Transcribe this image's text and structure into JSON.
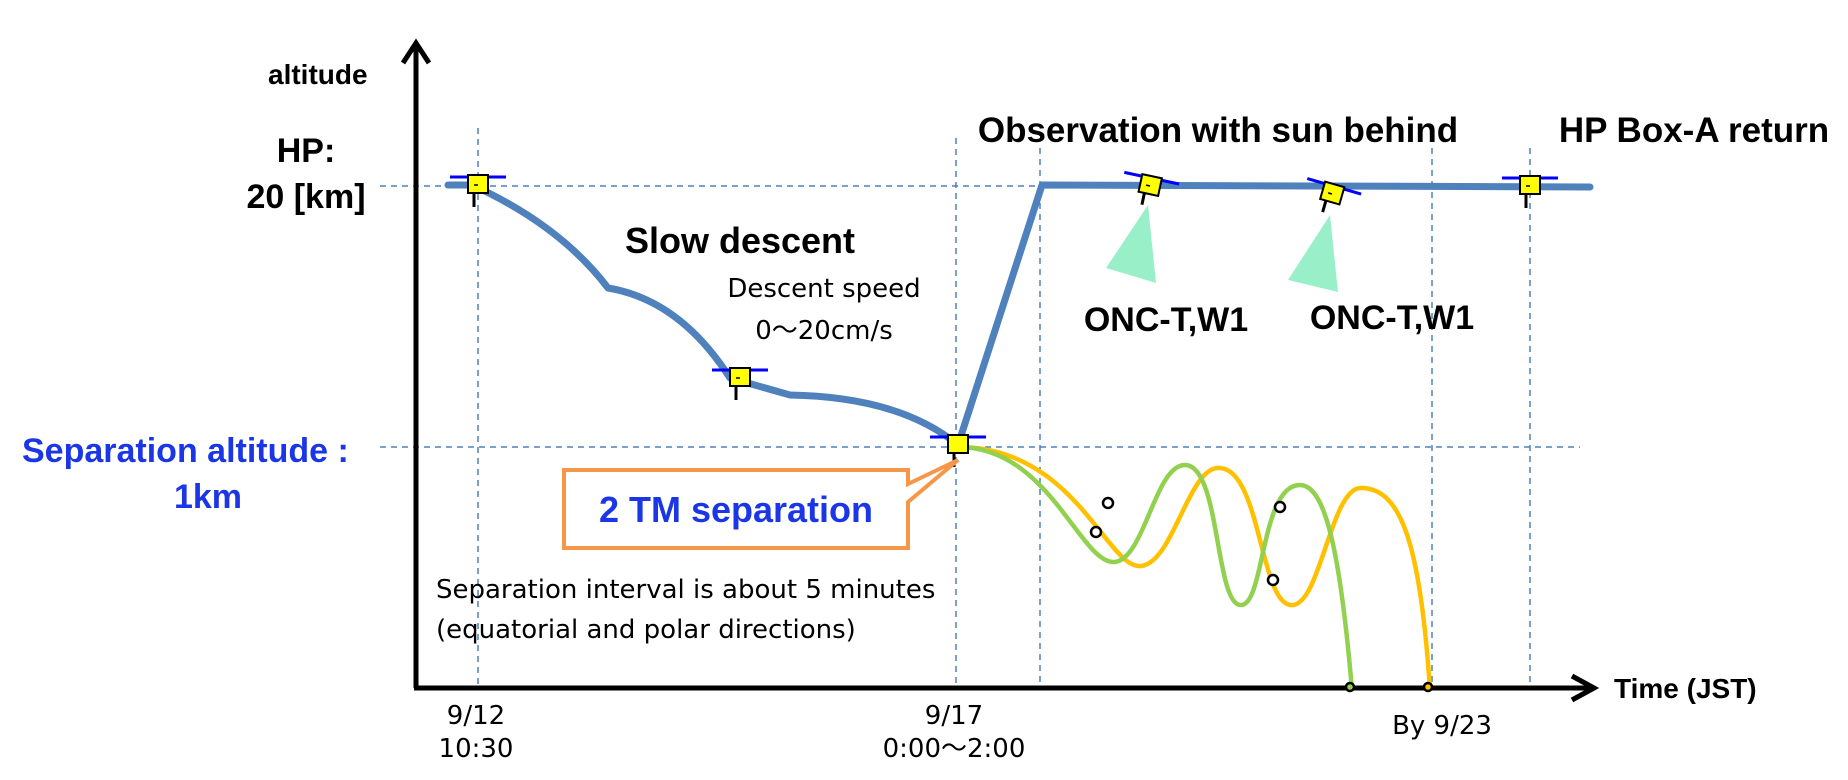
{
  "axes": {
    "y_label": "altitude",
    "x_label": "Time (JST)"
  },
  "levels": {
    "hp_line1": "HP:",
    "hp_line2": "20 [km]",
    "separation_line1": "Separation altitude :",
    "separation_line2": "1km"
  },
  "phases": {
    "slow_descent": "Slow descent",
    "descent_speed_line1": "Descent speed",
    "descent_speed_line2": "0～20cm/s",
    "observation": "Observation with sun behind",
    "box_a_return": "HP Box-A return",
    "onc_1": "ONC-T,W1",
    "onc_2": "ONC-T,W1"
  },
  "separation": {
    "callout": "2 TM separation",
    "note_line1": "Separation interval is about 5 minutes",
    "note_line2": "(equatorial and polar directions)"
  },
  "time_ticks": [
    {
      "line1": "9/12",
      "line2": "10:30"
    },
    {
      "line1": "9/17",
      "line2": "0:00～2:00"
    },
    {
      "line1": "By 9/23",
      "line2": ""
    }
  ],
  "colors": {
    "spacecraft_path": "#4f81bd",
    "guide_lines": "#4f81bd",
    "separation_text": "#1a36e6",
    "callout_border": "#f79646",
    "tm_path_a": "#92d050",
    "tm_path_b": "#ffc000",
    "camera_beam": "#99f0c8",
    "spacecraft_body": "#ffff00"
  }
}
